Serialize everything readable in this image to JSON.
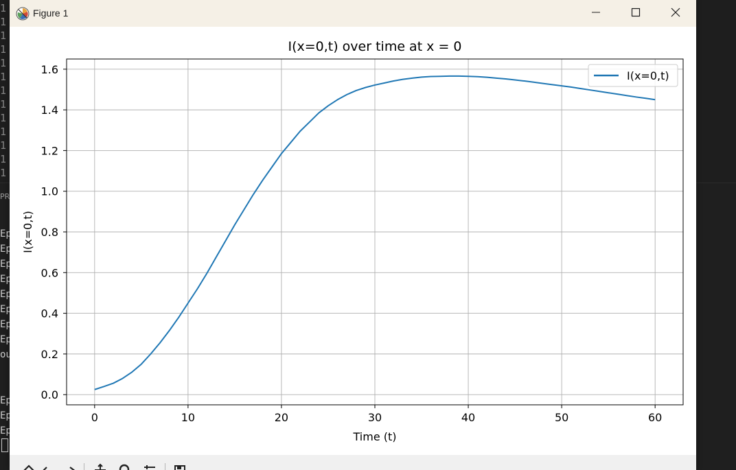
{
  "window": {
    "title": "Figure 1",
    "icons": {
      "app": "matplotlib-icon",
      "minimize": "minimize-icon",
      "maximize": "maximize-icon",
      "close": "close-icon"
    }
  },
  "background": {
    "editor_gutter": [
      "1",
      "1",
      "1",
      "1",
      "1",
      "1",
      "1",
      "1",
      "1",
      "1",
      "1",
      "1",
      "1"
    ],
    "panel_label": "PR",
    "terminal_lines_top": [
      "Ep",
      "Ep",
      "Ep",
      "Ep",
      "Ep",
      "Ep",
      "Ep",
      "Ep",
      "ou"
    ],
    "terminal_lines_bottom": [
      "Ep",
      "Ep",
      "Ep"
    ]
  },
  "toolbar": {
    "items": [
      "home-icon",
      "back-icon",
      "forward-icon",
      "pan-icon",
      "zoom-icon",
      "configure-subplots-icon",
      "save-icon"
    ]
  },
  "chart_data": {
    "type": "line",
    "title": "I(x=0,t) over time at x = 0",
    "xlabel": "Time (t)",
    "ylabel": "I(x=0,t)",
    "xlim": [
      -3,
      63
    ],
    "ylim": [
      -0.05,
      1.65
    ],
    "xticks": [
      0,
      10,
      20,
      30,
      40,
      50,
      60
    ],
    "xtick_labels": [
      "0",
      "10",
      "20",
      "30",
      "40",
      "50",
      "60"
    ],
    "yticks": [
      0.0,
      0.2,
      0.4,
      0.6,
      0.8,
      1.0,
      1.2,
      1.4,
      1.6
    ],
    "ytick_labels": [
      "0.0",
      "0.2",
      "0.4",
      "0.6",
      "0.8",
      "1.0",
      "1.2",
      "1.4",
      "1.6"
    ],
    "grid": true,
    "legend": "top-right",
    "series": [
      {
        "name": "I(x=0,t)",
        "color": "#1f77b4",
        "x": [
          0,
          1,
          2,
          3,
          4,
          5,
          6,
          7,
          8,
          9,
          10,
          11,
          12,
          13,
          14,
          15,
          16,
          17,
          18,
          19,
          20,
          21,
          22,
          23,
          24,
          25,
          26,
          27,
          28,
          29,
          30,
          31,
          32,
          33,
          34,
          35,
          36,
          37,
          38,
          39,
          40,
          41,
          42,
          43,
          44,
          45,
          46,
          47,
          48,
          49,
          50,
          51,
          52,
          53,
          54,
          55,
          56,
          57,
          58,
          59,
          60
        ],
        "y": [
          0.025,
          0.04,
          0.056,
          0.08,
          0.111,
          0.15,
          0.2,
          0.255,
          0.315,
          0.38,
          0.45,
          0.52,
          0.595,
          0.675,
          0.755,
          0.835,
          0.91,
          0.985,
          1.055,
          1.12,
          1.185,
          1.24,
          1.295,
          1.34,
          1.385,
          1.42,
          1.45,
          1.475,
          1.495,
          1.51,
          1.522,
          1.532,
          1.542,
          1.55,
          1.556,
          1.561,
          1.564,
          1.565,
          1.566,
          1.566,
          1.565,
          1.563,
          1.56,
          1.556,
          1.552,
          1.547,
          1.542,
          1.536,
          1.53,
          1.524,
          1.518,
          1.512,
          1.505,
          1.498,
          1.491,
          1.484,
          1.477,
          1.47,
          1.463,
          1.457,
          1.45
        ]
      }
    ]
  }
}
